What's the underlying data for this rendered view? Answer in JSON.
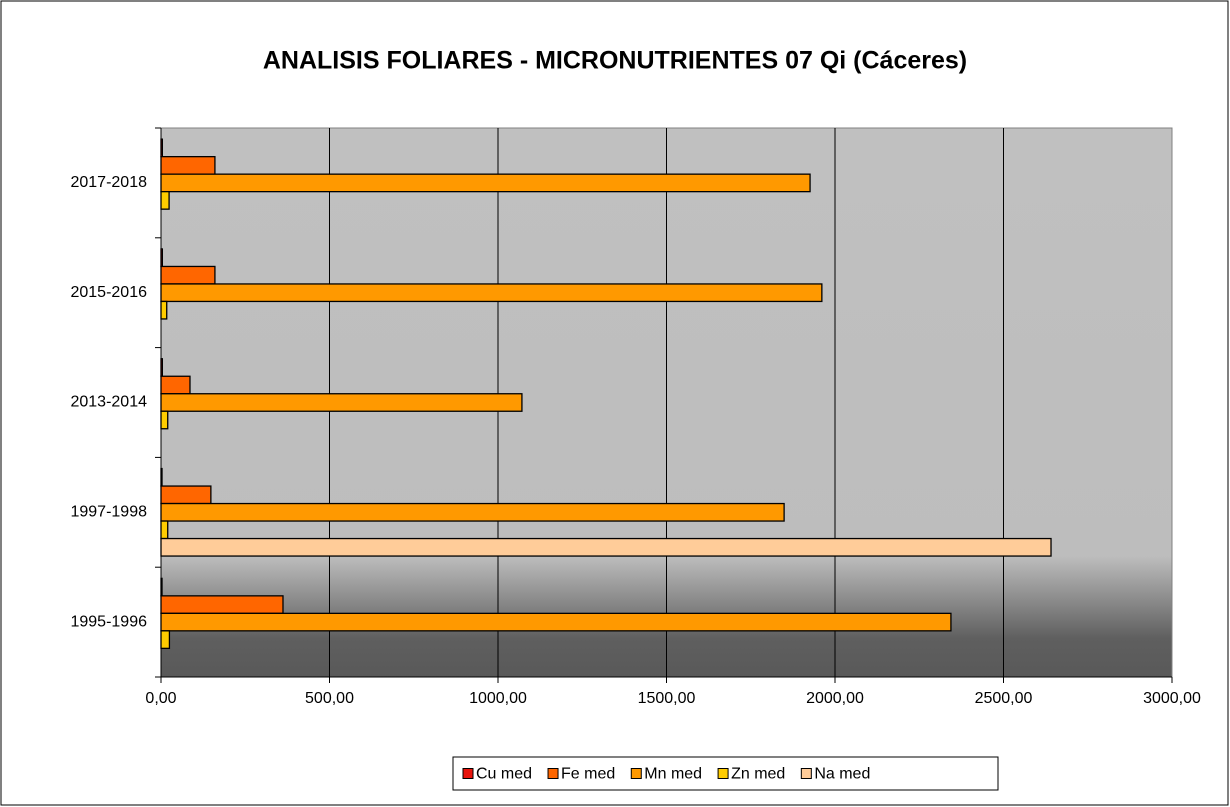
{
  "chart_data": {
    "type": "bar",
    "orientation": "horizontal",
    "title": "ANALISIS FOLIARES - MICRONUTRIENTES 07 Qi (Cáceres)",
    "categories": [
      "1995-1996",
      "1997-1998",
      "2013-2014",
      "2015-2016",
      "2017-2018"
    ],
    "series": [
      {
        "name": "Cu med",
        "color": "#e8140c",
        "values": [
          3,
          3,
          4,
          4,
          4
        ]
      },
      {
        "name": "Fe med",
        "color": "#ff6600",
        "values": [
          362,
          148,
          86,
          160,
          160
        ]
      },
      {
        "name": "Mn med",
        "color": "#ff9900",
        "values": [
          2344,
          1849,
          1071,
          1961,
          1926
        ]
      },
      {
        "name": "Zn med",
        "color": "#ffcc00",
        "values": [
          25,
          20,
          20,
          17,
          24
        ]
      },
      {
        "name": "Na med",
        "color": "#ffcc99",
        "values": [
          null,
          2641,
          null,
          null,
          null
        ]
      }
    ],
    "xlim": [
      0,
      3000
    ],
    "xticks": [
      {
        "value": 0,
        "label": "0,00"
      },
      {
        "value": 500,
        "label": "500,00"
      },
      {
        "value": 1000,
        "label": "1000,00"
      },
      {
        "value": 1500,
        "label": "1500,00"
      },
      {
        "value": 2000,
        "label": "2000,00"
      },
      {
        "value": 2500,
        "label": "2500,00"
      },
      {
        "value": 3000,
        "label": "3000,00"
      }
    ],
    "grid": true,
    "legend": "bottom"
  }
}
